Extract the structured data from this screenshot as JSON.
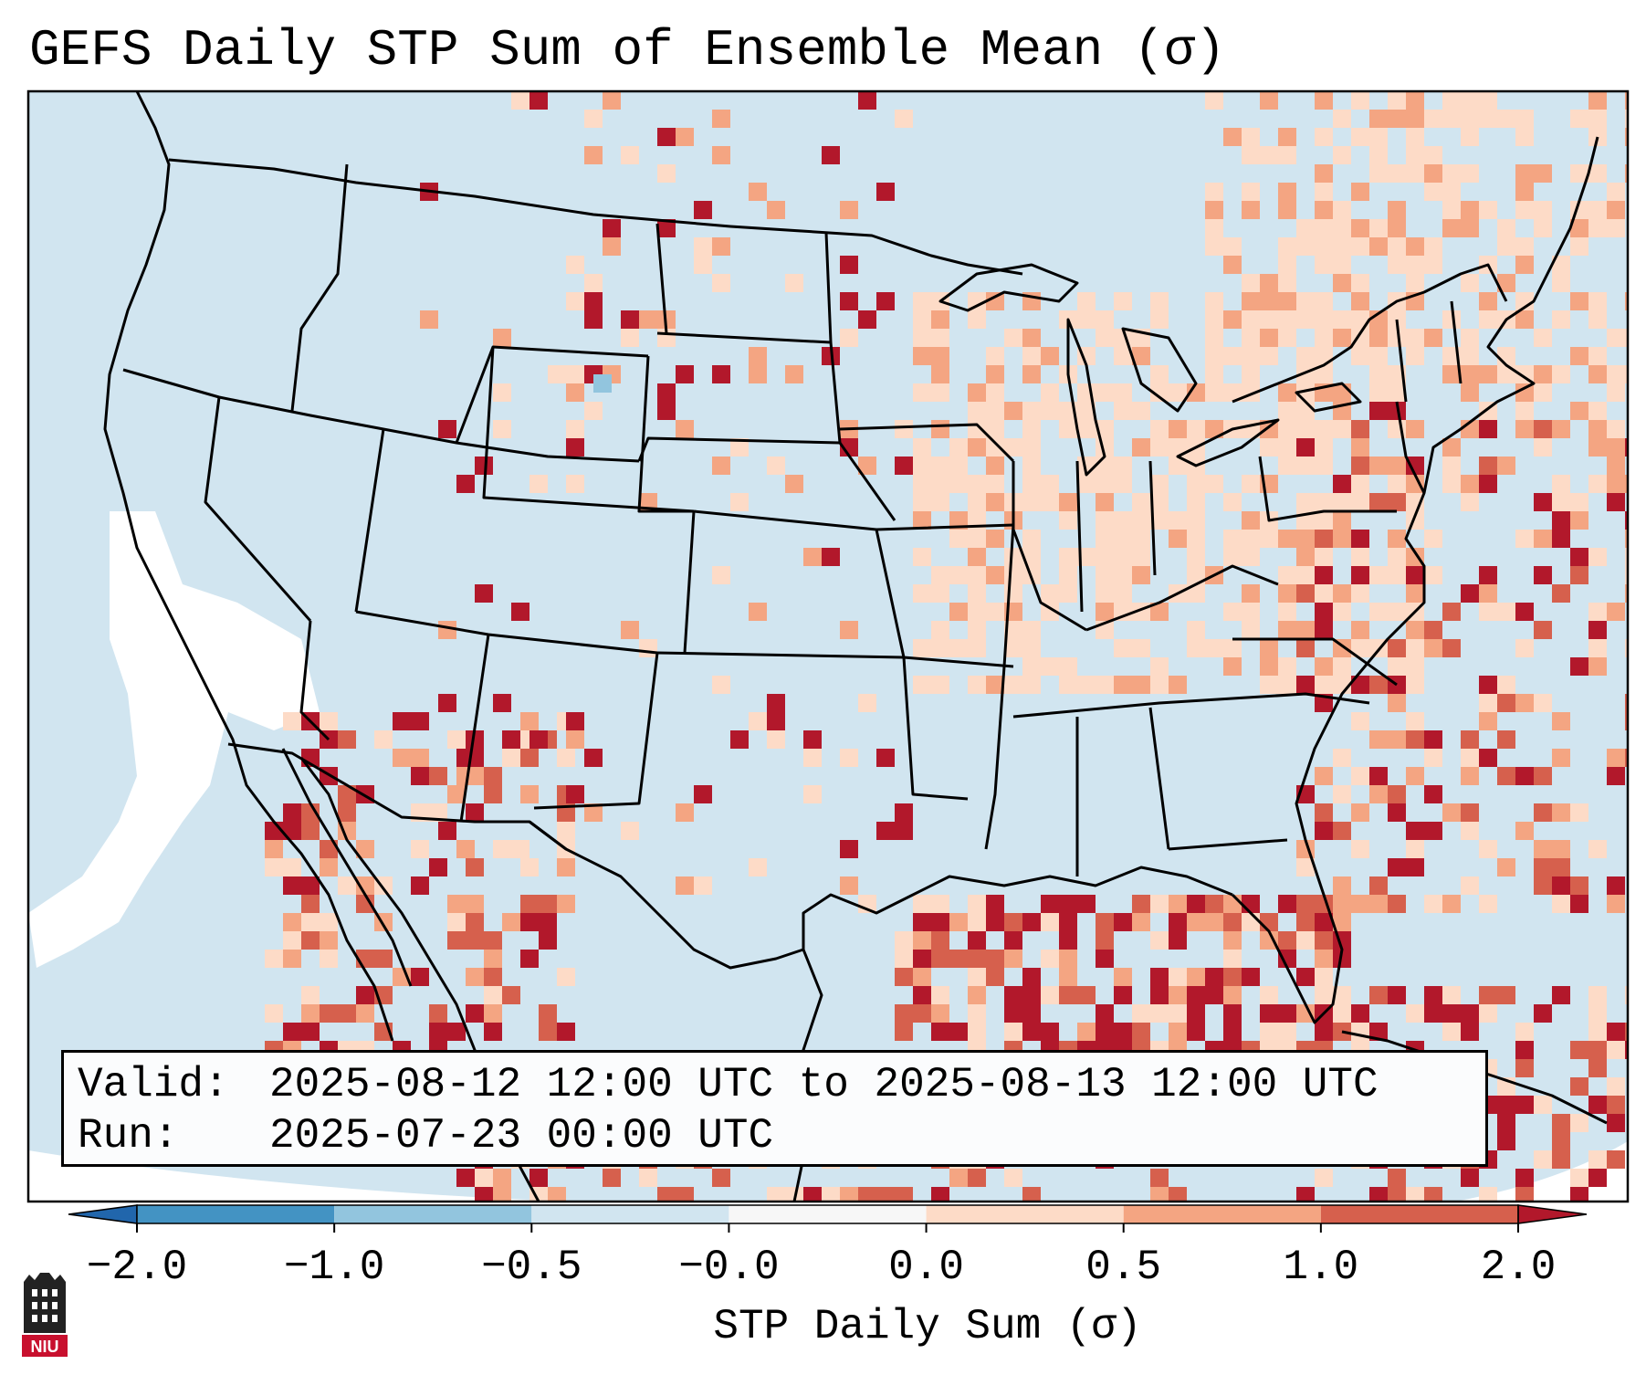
{
  "title": "GEFS Daily STP Sum of Ensemble Mean (σ)",
  "valid": {
    "label": "Valid:",
    "value": "2025-08-12 12:00 UTC to 2025-08-13 12:00 UTC"
  },
  "run": {
    "label": "Run:",
    "value": "2025-07-23 00:00 UTC"
  },
  "colorbar": {
    "title": "STP Daily Sum (σ)",
    "ticks": [
      "−2.0",
      "−1.0",
      "−0.5",
      "−0.0",
      "0.0",
      "0.5",
      "1.0",
      "2.0"
    ],
    "bins": [
      {
        "range": "< -2.0",
        "color": "#2166ac"
      },
      {
        "range": "-2.0 to -1.0",
        "color": "#4393c3"
      },
      {
        "range": "-1.0 to -0.5",
        "color": "#92c5de"
      },
      {
        "range": "-0.5 to -0.0",
        "color": "#d1e5f0"
      },
      {
        "range": "-0.0 to 0.0",
        "color": "#f7f7f7"
      },
      {
        "range": "0.0 to 0.5",
        "color": "#fddbc7"
      },
      {
        "range": "0.5 to 1.0",
        "color": "#f4a582"
      },
      {
        "range": "1.0 to 2.0",
        "color": "#d6604d"
      },
      {
        "range": "> 2.0",
        "color": "#b2182b"
      }
    ]
  },
  "logo": {
    "text": "NIU",
    "name": "niu-logo"
  }
}
